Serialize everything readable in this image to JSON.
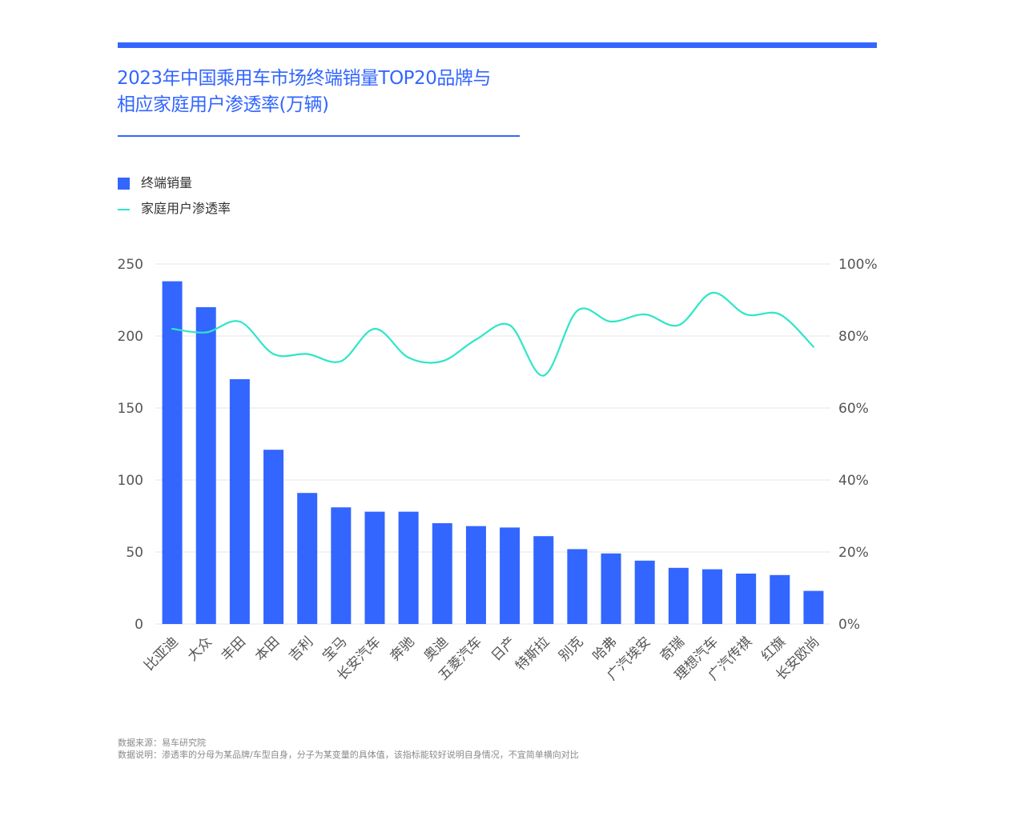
{
  "header": {
    "title_line1": "2023年中国乘用车市场终端销量TOP20品牌与",
    "title_line2": "相应家庭用户渗透率(万辆)"
  },
  "legend": {
    "bar_label": "终端销量",
    "line_label": "家庭用户渗透率"
  },
  "colors": {
    "accent": "#3366ff",
    "bar": "#3366ff",
    "line": "#2ee6c8",
    "grid": "#e6e6e6",
    "axis_text": "#555555"
  },
  "chart_data": {
    "type": "bar",
    "title": "2023年中国乘用车市场终端销量TOP20品牌与相应家庭用户渗透率(万辆)",
    "categories": [
      "比亚迪",
      "大众",
      "丰田",
      "本田",
      "吉利",
      "宝马",
      "长安汽车",
      "奔驰",
      "奥迪",
      "五菱汽车",
      "日产",
      "特斯拉",
      "别克",
      "哈弗",
      "广汽埃安",
      "奇瑞",
      "理想汽车",
      "广汽传祺",
      "红旗",
      "长安欧尚"
    ],
    "series": [
      {
        "name": "终端销量",
        "type": "bar",
        "axis": "left",
        "values": [
          238,
          220,
          170,
          121,
          91,
          81,
          78,
          78,
          70,
          68,
          67,
          61,
          52,
          49,
          44,
          39,
          38,
          35,
          34,
          23
        ]
      },
      {
        "name": "家庭用户渗透率",
        "type": "line",
        "axis": "right",
        "values": [
          82,
          81,
          84,
          75,
          75,
          73,
          82,
          74,
          73,
          79,
          83,
          69,
          87,
          84,
          86,
          83,
          92,
          86,
          86,
          77
        ]
      }
    ],
    "ylim_left": [
      0,
      250
    ],
    "yticks_left": [
      "0",
      "50",
      "100",
      "150",
      "200",
      "250"
    ],
    "ylim_right": [
      0,
      100
    ],
    "yticks_right": [
      "0%",
      "20%",
      "40%",
      "60%",
      "80%",
      "100%"
    ],
    "grid": true,
    "legend_position": "top-left"
  },
  "footer": {
    "source": "数据来源：易车研究院",
    "note": "数据说明：渗透率的分母为某品牌/车型自身，分子为某变量的具体值，该指标能较好说明自身情况，不宜简单横向对比"
  }
}
